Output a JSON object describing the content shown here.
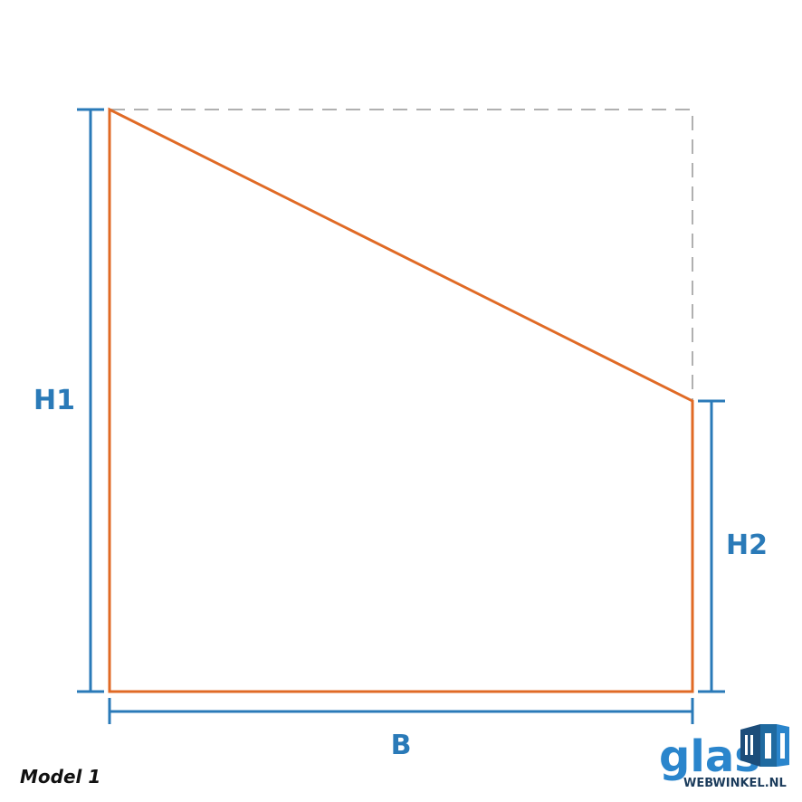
{
  "labels": {
    "h1": "H1",
    "h2": "H2",
    "b": "B"
  },
  "model": "Model 1",
  "logo": {
    "main": "glas",
    "sub": "WEBWINKEL.NL"
  },
  "colors": {
    "shape": "#e06a25",
    "dimension": "#2a7ab8",
    "guide": "#b0b0b0"
  }
}
